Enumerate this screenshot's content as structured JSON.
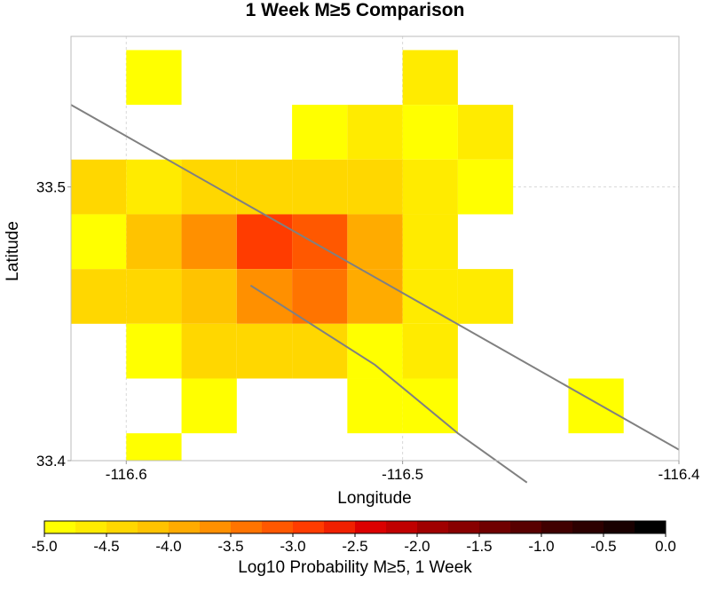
{
  "chart_data": {
    "type": "heatmap",
    "title": "1 Week M≥5 Comparison",
    "xlabel": "Longitude",
    "ylabel": "Latitude",
    "xlim": [
      -116.62,
      -116.4
    ],
    "ylim": [
      33.4,
      33.555
    ],
    "grid": true,
    "x_ticks": [
      -116.6,
      -116.5,
      -116.4
    ],
    "x_tick_labels": [
      "-116.6",
      "-116.5",
      "-116.4"
    ],
    "y_ticks": [
      33.4,
      33.5
    ],
    "y_tick_labels": [
      "33.4",
      "33.5"
    ],
    "cell_size_deg": 0.02,
    "cells": [
      {
        "lon": -116.59,
        "lat": 33.54,
        "log10p": -4.85
      },
      {
        "lon": -116.49,
        "lat": 33.54,
        "log10p": -4.55
      },
      {
        "lon": -116.53,
        "lat": 33.52,
        "log10p": -4.8
      },
      {
        "lon": -116.51,
        "lat": 33.52,
        "log10p": -4.6
      },
      {
        "lon": -116.49,
        "lat": 33.52,
        "log10p": -4.8
      },
      {
        "lon": -116.47,
        "lat": 33.52,
        "log10p": -4.55
      },
      {
        "lon": -116.61,
        "lat": 33.5,
        "log10p": -4.4
      },
      {
        "lon": -116.59,
        "lat": 33.5,
        "log10p": -4.7
      },
      {
        "lon": -116.57,
        "lat": 33.5,
        "log10p": -4.5
      },
      {
        "lon": -116.55,
        "lat": 33.5,
        "log10p": -4.3
      },
      {
        "lon": -116.53,
        "lat": 33.5,
        "log10p": -4.3
      },
      {
        "lon": -116.51,
        "lat": 33.5,
        "log10p": -4.4
      },
      {
        "lon": -116.49,
        "lat": 33.5,
        "log10p": -4.75
      },
      {
        "lon": -116.47,
        "lat": 33.5,
        "log10p": -4.9
      },
      {
        "lon": -116.61,
        "lat": 33.48,
        "log10p": -4.8
      },
      {
        "lon": -116.59,
        "lat": 33.48,
        "log10p": -4.2
      },
      {
        "lon": -116.57,
        "lat": 33.48,
        "log10p": -3.6
      },
      {
        "lon": -116.55,
        "lat": 33.48,
        "log10p": -3.0
      },
      {
        "lon": -116.53,
        "lat": 33.48,
        "log10p": -3.2
      },
      {
        "lon": -116.51,
        "lat": 33.48,
        "log10p": -4.0
      },
      {
        "lon": -116.49,
        "lat": 33.48,
        "log10p": -4.6
      },
      {
        "lon": -116.61,
        "lat": 33.46,
        "log10p": -4.3
      },
      {
        "lon": -116.59,
        "lat": 33.46,
        "log10p": -4.3
      },
      {
        "lon": -116.57,
        "lat": 33.46,
        "log10p": -4.1
      },
      {
        "lon": -116.55,
        "lat": 33.46,
        "log10p": -3.6
      },
      {
        "lon": -116.53,
        "lat": 33.46,
        "log10p": -3.3
      },
      {
        "lon": -116.51,
        "lat": 33.46,
        "log10p": -4.0
      },
      {
        "lon": -116.49,
        "lat": 33.46,
        "log10p": -4.6
      },
      {
        "lon": -116.47,
        "lat": 33.46,
        "log10p": -4.6
      },
      {
        "lon": -116.59,
        "lat": 33.44,
        "log10p": -4.8
      },
      {
        "lon": -116.57,
        "lat": 33.44,
        "log10p": -4.3
      },
      {
        "lon": -116.55,
        "lat": 33.44,
        "log10p": -4.3
      },
      {
        "lon": -116.53,
        "lat": 33.44,
        "log10p": -4.3
      },
      {
        "lon": -116.51,
        "lat": 33.44,
        "log10p": -4.9
      },
      {
        "lon": -116.49,
        "lat": 33.44,
        "log10p": -4.6
      },
      {
        "lon": -116.57,
        "lat": 33.42,
        "log10p": -4.8
      },
      {
        "lon": -116.51,
        "lat": 33.42,
        "log10p": -4.9
      },
      {
        "lon": -116.49,
        "lat": 33.42,
        "log10p": -4.9
      },
      {
        "lon": -116.43,
        "lat": 33.42,
        "log10p": -4.9
      },
      {
        "lon": -116.59,
        "lat": 33.4,
        "log10p": -4.9
      }
    ],
    "fault_traces": [
      [
        [
          -116.62,
          33.53
        ],
        [
          -116.4,
          33.404
        ]
      ],
      [
        [
          -116.555,
          33.464
        ],
        [
          -116.51,
          33.435
        ],
        [
          -116.48,
          33.41
        ],
        [
          -116.455,
          33.392
        ]
      ]
    ],
    "colorbar": {
      "label": "Log10 Probability M≥5, 1 Week",
      "range": [
        -5.0,
        0.0
      ],
      "ticks": [
        -5.0,
        -4.5,
        -4.0,
        -3.5,
        -3.0,
        -2.5,
        -2.0,
        -1.5,
        -1.0,
        -0.5,
        0.0
      ],
      "tick_labels": [
        "-5.0",
        "-4.5",
        "-4.0",
        "-3.5",
        "-3.0",
        "-2.5",
        "-2.0",
        "-1.5",
        "-1.0",
        "-0.5",
        "0.0"
      ],
      "colors": [
        "#ffff00",
        "#ffeb00",
        "#ffd700",
        "#ffc300",
        "#ffab00",
        "#ff9000",
        "#ff7400",
        "#ff5800",
        "#ff3c00",
        "#f02000",
        "#dc0000",
        "#c00000",
        "#a00000",
        "#880000",
        "#700000",
        "#580000",
        "#400000",
        "#2c0000",
        "#180000",
        "#000000"
      ]
    },
    "fault_color": "#808080"
  }
}
